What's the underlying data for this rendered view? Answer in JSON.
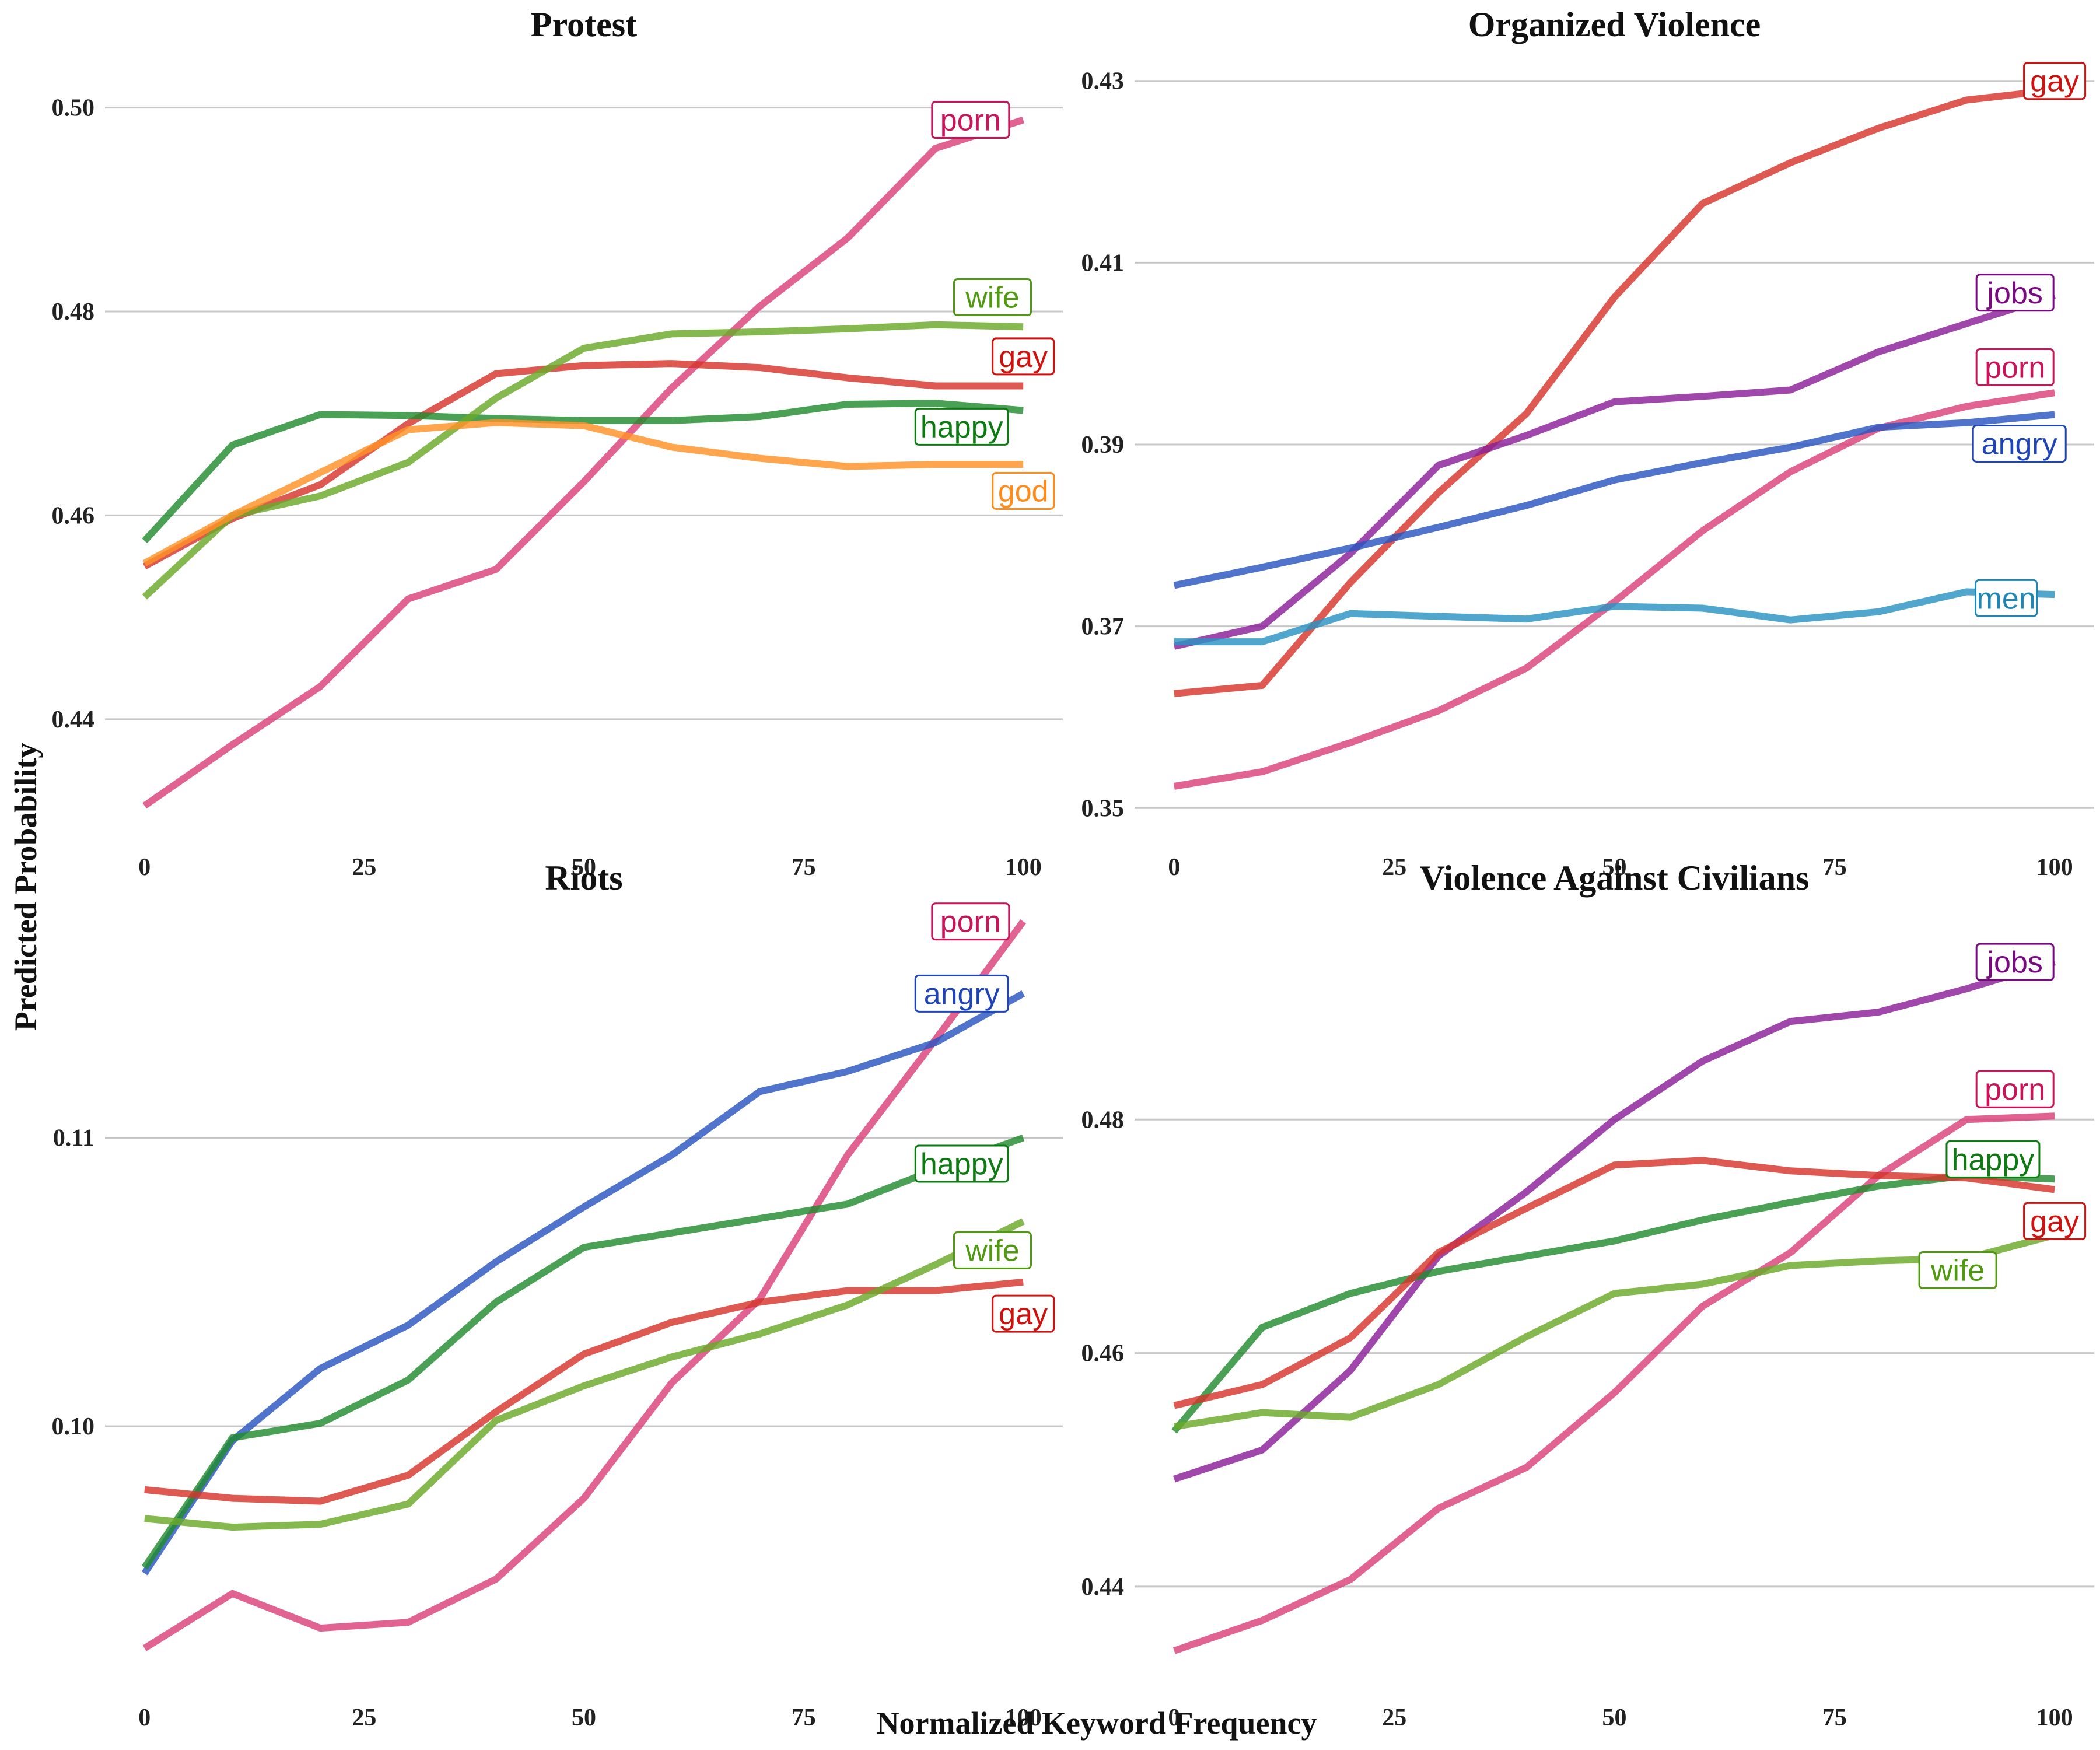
{
  "figure": {
    "ylabel": "Predicted Probability",
    "xlabel": "Normalized Keyword Frequency"
  },
  "colors": {
    "porn": "#d9417a",
    "gay": "#d5352c",
    "wife": "#6aaa2a",
    "happy": "#228b2e",
    "god": "#ff9126",
    "jobs": "#8b1e98",
    "angry": "#2a55c0",
    "men": "#2b93c2"
  },
  "label_colors": {
    "porn": "#c9145a",
    "gay": "#d0120e",
    "wife": "#4f9a10",
    "happy": "#0d7a12",
    "god": "#ff8c1a",
    "jobs": "#7a0a82",
    "angry": "#1e44b8",
    "men": "#1f86b5"
  },
  "chart_data": [
    {
      "type": "line",
      "title": "Protest",
      "x": [
        0,
        10,
        20,
        30,
        40,
        50,
        60,
        70,
        80,
        90,
        100
      ],
      "xticks": [
        0,
        25,
        50,
        75,
        100
      ],
      "xlim": [
        -4.5,
        104.5
      ],
      "yticks": [
        0.44,
        0.46,
        0.48,
        0.5
      ],
      "ytick_labels": [
        "0.44",
        "0.46",
        "0.48",
        "0.50"
      ],
      "ylim": [
        0.4286,
        0.5053
      ],
      "series": [
        {
          "name": "porn",
          "values": [
            0.4315,
            0.4375,
            0.4432,
            0.4518,
            0.4547,
            0.4633,
            0.4725,
            0.4805,
            0.4872,
            0.496,
            0.4988
          ]
        },
        {
          "name": "gay",
          "values": [
            0.455,
            0.4597,
            0.463,
            0.469,
            0.4739,
            0.4747,
            0.4749,
            0.4745,
            0.4735,
            0.4727,
            0.4727
          ]
        },
        {
          "name": "happy",
          "values": [
            0.4575,
            0.4669,
            0.4699,
            0.4698,
            0.4695,
            0.4693,
            0.4693,
            0.4697,
            0.4709,
            0.471,
            0.4703
          ]
        },
        {
          "name": "wife",
          "values": [
            0.452,
            0.46,
            0.4619,
            0.4652,
            0.4715,
            0.4764,
            0.4778,
            0.478,
            0.4783,
            0.4787,
            0.4785
          ]
        },
        {
          "name": "god",
          "values": [
            0.4553,
            0.46,
            0.4642,
            0.4684,
            0.4691,
            0.4688,
            0.4667,
            0.4656,
            0.4648,
            0.465,
            0.465
          ]
        }
      ],
      "labels": [
        {
          "text": "porn",
          "x": 94,
          "y": 0.4988
        },
        {
          "text": "wife",
          "x": 96.5,
          "y": 0.4814
        },
        {
          "text": "gay",
          "x": 100,
          "y": 0.4756
        },
        {
          "text": "happy",
          "x": 93,
          "y": 0.4687
        },
        {
          "text": "god",
          "x": 100,
          "y": 0.4624
        }
      ]
    },
    {
      "type": "line",
      "title": "Organized Violence",
      "x": [
        0,
        10,
        20,
        30,
        40,
        50,
        60,
        70,
        80,
        90,
        100
      ],
      "xticks": [
        0,
        25,
        50,
        75,
        100
      ],
      "xlim": [
        -4.5,
        104.5
      ],
      "yticks": [
        0.35,
        0.37,
        0.39,
        0.41,
        0.43
      ],
      "ytick_labels": [
        "0.35",
        "0.37",
        "0.39",
        "0.41",
        "0.43"
      ],
      "ylim": [
        0.347,
        0.433
      ],
      "series": [
        {
          "name": "gay",
          "values": [
            0.3626,
            0.3635,
            0.3748,
            0.3847,
            0.3934,
            0.4062,
            0.4165,
            0.421,
            0.4248,
            0.4279,
            0.429
          ]
        },
        {
          "name": "jobs",
          "values": [
            0.3678,
            0.37,
            0.378,
            0.3877,
            0.391,
            0.3947,
            0.3953,
            0.396,
            0.4002,
            0.4033,
            0.4064
          ]
        },
        {
          "name": "porn",
          "values": [
            0.3524,
            0.354,
            0.3572,
            0.3607,
            0.3654,
            0.3727,
            0.3805,
            0.387,
            0.3918,
            0.3942,
            0.3957
          ]
        },
        {
          "name": "angry",
          "values": [
            0.3745,
            0.3765,
            0.3786,
            0.3809,
            0.3833,
            0.3861,
            0.388,
            0.3897,
            0.3919,
            0.3924,
            0.3933
          ]
        },
        {
          "name": "men",
          "values": [
            0.3683,
            0.3683,
            0.3714,
            0.3711,
            0.3708,
            0.3722,
            0.372,
            0.3707,
            0.3716,
            0.3738,
            0.3735
          ]
        }
      ],
      "labels": [
        {
          "text": "gay",
          "x": 100,
          "y": 0.43
        },
        {
          "text": "jobs",
          "x": 95.5,
          "y": 0.4067
        },
        {
          "text": "porn",
          "x": 95.5,
          "y": 0.3985
        },
        {
          "text": "angry",
          "x": 96,
          "y": 0.3901
        },
        {
          "text": "men",
          "x": 94.5,
          "y": 0.3731
        }
      ]
    },
    {
      "type": "line",
      "title": "Riots",
      "x": [
        0,
        10,
        20,
        30,
        40,
        50,
        60,
        70,
        80,
        90,
        100
      ],
      "xticks": [
        0,
        25,
        50,
        75,
        100
      ],
      "xlim": [
        -4.5,
        104.5
      ],
      "yticks": [
        0.1,
        0.11
      ],
      "ytick_labels": [
        "0.10",
        "0.11"
      ],
      "ylim": [
        0.091,
        0.118
      ],
      "series": [
        {
          "name": "porn",
          "values": [
            0.0923,
            0.0942,
            0.093,
            0.0932,
            0.0947,
            0.0975,
            0.1015,
            0.1044,
            0.1094,
            0.1134,
            0.1175
          ]
        },
        {
          "name": "angry",
          "values": [
            0.0949,
            0.0995,
            0.102,
            0.1035,
            0.1057,
            0.1076,
            0.1094,
            0.1116,
            0.1123,
            0.1133,
            0.115
          ]
        },
        {
          "name": "happy",
          "values": [
            0.0951,
            0.0996,
            0.1001,
            0.1016,
            0.1043,
            0.1062,
            0.1067,
            0.1072,
            0.1077,
            0.1089,
            0.11
          ]
        },
        {
          "name": "gay",
          "values": [
            0.0978,
            0.0975,
            0.0974,
            0.0983,
            0.1005,
            0.1025,
            0.1036,
            0.1043,
            0.1047,
            0.1047,
            0.105
          ]
        },
        {
          "name": "wife",
          "values": [
            0.0968,
            0.0965,
            0.0966,
            0.0973,
            0.1002,
            0.1014,
            0.1024,
            0.1032,
            0.1042,
            0.1056,
            0.1071
          ]
        }
      ],
      "labels": [
        {
          "text": "porn",
          "x": 94,
          "y": 0.1175
        },
        {
          "text": "angry",
          "x": 93,
          "y": 0.115
        },
        {
          "text": "happy",
          "x": 93,
          "y": 0.1091
        },
        {
          "text": "wife",
          "x": 96.5,
          "y": 0.1061
        },
        {
          "text": "gay",
          "x": 100,
          "y": 0.1039
        }
      ]
    },
    {
      "type": "line",
      "title": "Violence Against Civilians",
      "x": [
        0,
        10,
        20,
        30,
        40,
        50,
        60,
        70,
        80,
        90,
        100
      ],
      "xticks": [
        0,
        25,
        50,
        75,
        100
      ],
      "xlim": [
        -4.5,
        104.5
      ],
      "yticks": [
        0.44,
        0.46,
        0.48
      ],
      "ytick_labels": [
        "0.44",
        "0.46",
        "0.48"
      ],
      "ylim": [
        0.4315,
        0.4982
      ],
      "series": [
        {
          "name": "jobs",
          "values": [
            0.4492,
            0.4517,
            0.4585,
            0.4683,
            0.4738,
            0.48,
            0.485,
            0.4884,
            0.4892,
            0.4912,
            0.4935
          ]
        },
        {
          "name": "porn",
          "values": [
            0.4345,
            0.4371,
            0.4406,
            0.4467,
            0.4502,
            0.4566,
            0.464,
            0.4686,
            0.4752,
            0.48,
            0.4803
          ]
        },
        {
          "name": "happy",
          "values": [
            0.4533,
            0.4622,
            0.4651,
            0.467,
            0.4683,
            0.4696,
            0.4714,
            0.4729,
            0.4743,
            0.4752,
            0.4749
          ]
        },
        {
          "name": "gay",
          "values": [
            0.4555,
            0.4573,
            0.4613,
            0.4686,
            0.4724,
            0.4761,
            0.4765,
            0.4756,
            0.4752,
            0.475,
            0.474
          ]
        },
        {
          "name": "wife",
          "values": [
            0.4537,
            0.4549,
            0.4545,
            0.4573,
            0.4614,
            0.4651,
            0.4659,
            0.4675,
            0.4679,
            0.4681,
            0.4701
          ]
        }
      ],
      "labels": [
        {
          "text": "jobs",
          "x": 95.5,
          "y": 0.4935
        },
        {
          "text": "porn",
          "x": 95.5,
          "y": 0.4826
        },
        {
          "text": "happy",
          "x": 93,
          "y": 0.4766
        },
        {
          "text": "gay",
          "x": 100,
          "y": 0.4713
        },
        {
          "text": "wife",
          "x": 89,
          "y": 0.4671
        }
      ]
    }
  ]
}
